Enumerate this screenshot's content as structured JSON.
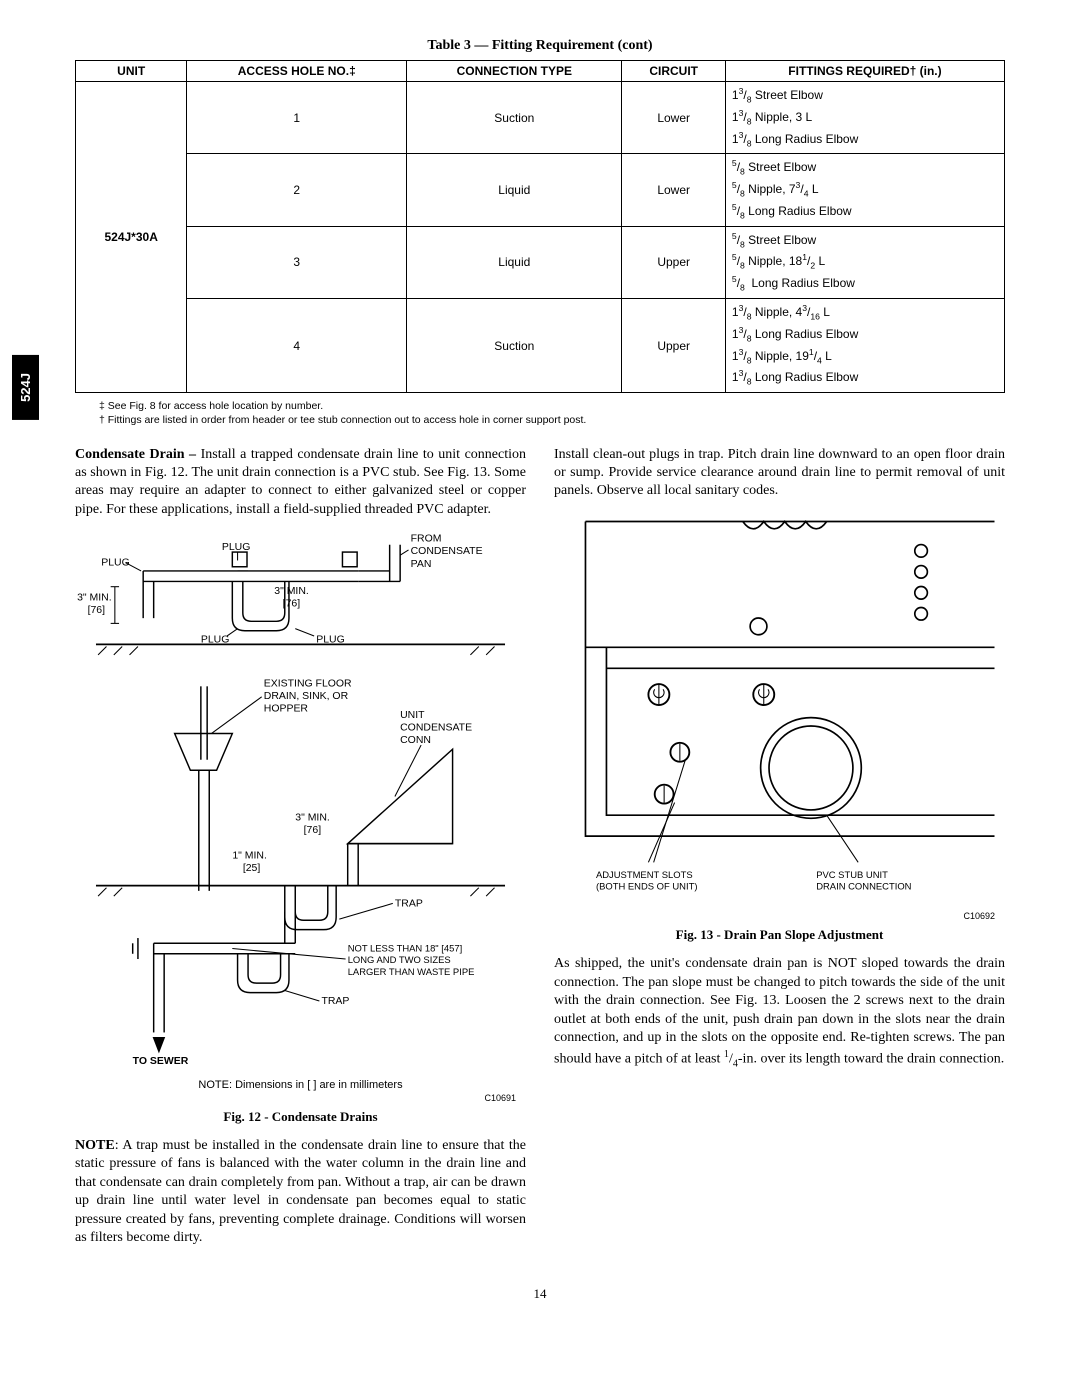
{
  "sideTab": "524J",
  "tableTitle": "Table 3 — Fitting Requirement (cont)",
  "table": {
    "headers": [
      "UNIT",
      "ACCESS HOLE NO.‡",
      "CONNECTION TYPE",
      "CIRCUIT",
      "FITTINGS REQUIRED† (in.)"
    ],
    "unit": "524J*30A",
    "rows": [
      {
        "hole": "1",
        "conn": "Suction",
        "circuit": "Lower",
        "fit": "1<sup>3</sup>/<sub>8</sub> Street Elbow<br>1<sup>3</sup>/<sub>8</sub> Nipple, 3 L<br>1<sup>3</sup>/<sub>8</sub> Long Radius Elbow"
      },
      {
        "hole": "2",
        "conn": "Liquid",
        "circuit": "Lower",
        "fit": "<sup>5</sup>/<sub>8</sub> Street Elbow<br><sup>5</sup>/<sub>8</sub> Nipple, 7<sup>3</sup>/<sub>4</sub> L<br><sup>5</sup>/<sub>8</sub> Long Radius Elbow"
      },
      {
        "hole": "3",
        "conn": "Liquid",
        "circuit": "Upper",
        "fit": "<sup>5</sup>/<sub>8</sub> Street Elbow<br><sup>5</sup>/<sub>8</sub> Nipple, 18<sup>1</sup>/<sub>2</sub> L<br><sup>5</sup>/<sub>8</sub>&nbsp; Long Radius Elbow"
      },
      {
        "hole": "4",
        "conn": "Suction",
        "circuit": "Upper",
        "fit": "1<sup>3</sup>/<sub>8</sub> Nipple, 4<sup>3</sup>/<sub>16</sub> L<br>1<sup>3</sup>/<sub>8</sub> Long Radius Elbow<br>1<sup>3</sup>/<sub>8</sub> Nipple, 19<sup>1</sup>/<sub>4</sub> L<br>1<sup>3</sup>/<sub>8</sub> Long Radius Elbow"
      }
    ]
  },
  "footnote1": "‡ See Fig. 8 for access hole location by number.",
  "footnote2": "† Fittings are listed in order from header or tee stub connection out to access hole in corner support post.",
  "leftCol": {
    "p1_lead": "Condensate Drain –",
    "p1": " Install a trapped condensate drain line to unit connection as shown in Fig. 12. The unit drain connection is a PVC stub. See Fig. 13. Some areas may require an adapter to connect to either galvanized steel or copper pipe. For these applications, install a field-supplied threaded PVC adapter.",
    "fig12_note": "NOTE: Dimensions in [  ] are in millimeters",
    "fig12_id": "C10691",
    "fig12_caption": "Fig. 12 - Condensate Drains",
    "note_lead": "NOTE",
    "note_body": ":    A trap must be installed in the condensate drain line to ensure that the static pressure of fans is balanced with the water column in the drain line and that condensate can drain completely from pan. Without a trap, air can be drawn up drain line until water level in condensate pan becomes equal to static pressure created by fans, preventing complete drainage. Conditions will worsen as filters become dirty."
  },
  "rightCol": {
    "p1": "Install clean-out plugs in trap. Pitch drain line downward to an open floor drain or sump. Provide service clearance around drain line to permit removal of unit panels. Observe all local sanitary codes.",
    "fig13_id": "C10692",
    "fig13_caption": "Fig. 13 - Drain Pan Slope Adjustment",
    "p2": "As shipped, the unit's condensate drain pan is NOT sloped towards the drain connection. The pan slope must be changed to pitch towards the side of the unit with the drain connection. See Fig. 13. Loosen the 2 screws next to the drain outlet at both ends of the unit, push drain pan down in the slots near the drain connection, and up in the slots on the opposite end. Re-tighten screws. The pan should have a pitch of at least <sup>1</sup>/<sub>4</sub>-in. over its length toward the drain connection."
  },
  "fig12_labels": {
    "plug": "PLUG",
    "from_pan": "FROM\nCONDENSATE\nPAN",
    "three_min": "3\" MIN.",
    "three_min_mm": "[76]",
    "existing": "EXISTING FLOOR\nDRAIN, SINK, OR\nHOPPER",
    "unit_conn": "UNIT\nCONDENSATE\nCONN",
    "one_min": "1\" MIN.",
    "one_min_mm": "[25]",
    "trap": "TRAP",
    "not_less": "NOT LESS THAN 18\" [457]\nLONG AND TWO SIZES\nLARGER THAN WASTE PIPE",
    "to_sewer": "TO SEWER"
  },
  "fig13_labels": {
    "adj_slots": "ADJUSTMENT SLOTS\n(BOTH ENDS OF UNIT)",
    "pvc_stub": "PVC STUB UNIT\nDRAIN CONNECTION"
  },
  "pageNum": "14",
  "colors": {
    "text": "#000000",
    "bg": "#ffffff",
    "tab_bg": "#000000",
    "tab_fg": "#ffffff"
  }
}
